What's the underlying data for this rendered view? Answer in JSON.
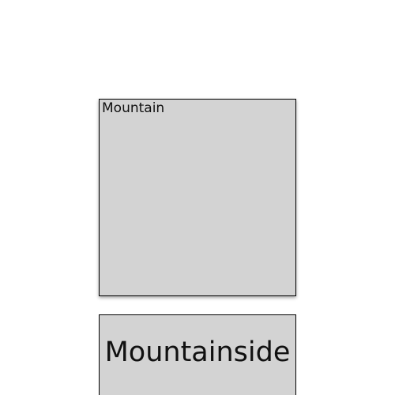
{
  "colors": {
    "background": "#ffffff",
    "card_fill": "#d3d3d3",
    "card_border": "#000000",
    "text": "#111111"
  },
  "cards": [
    {
      "label": "Mountain"
    },
    {
      "label": "Mountainside"
    }
  ]
}
